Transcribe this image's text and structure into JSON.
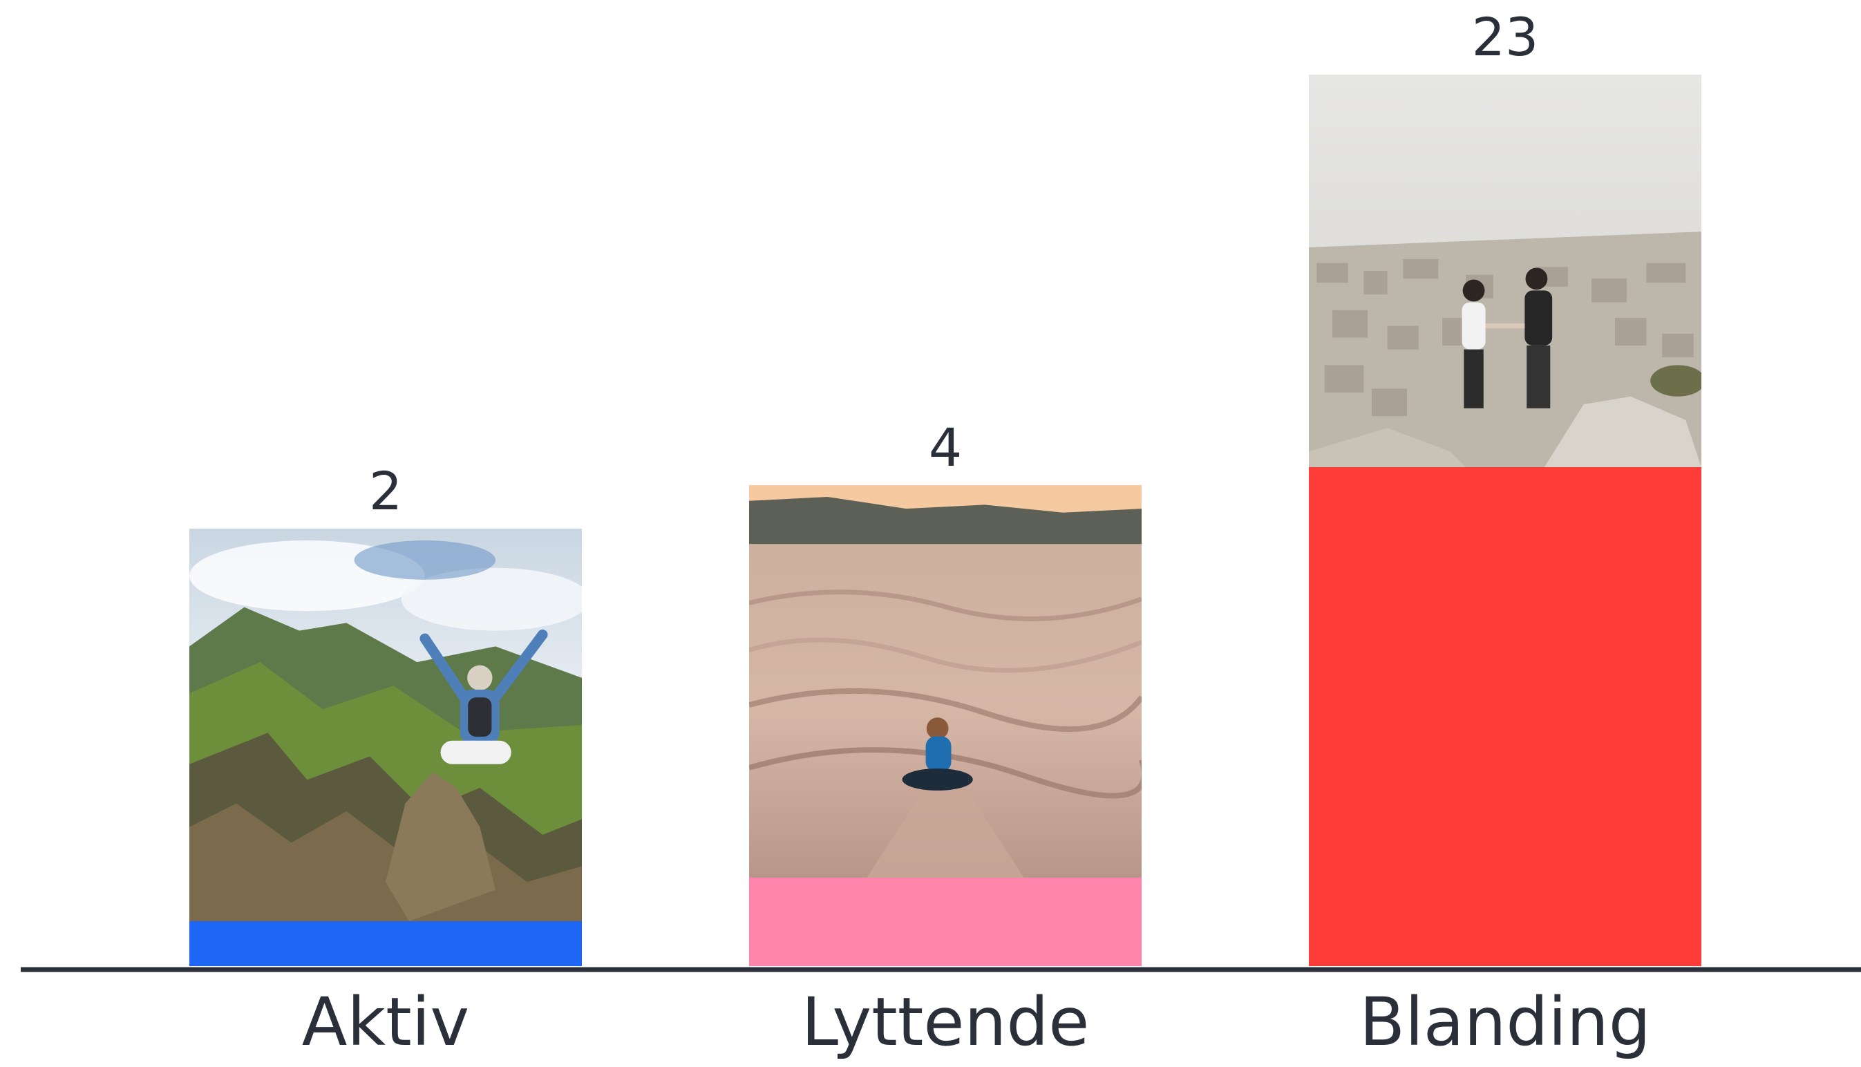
{
  "chart_data": {
    "type": "bar",
    "categories": [
      "Aktiv",
      "Lyttende",
      "Blanding"
    ],
    "values": [
      2,
      4,
      23
    ],
    "data_labels": [
      "2",
      "4",
      "23"
    ],
    "bar_colors": [
      "#1e66f5",
      "#ff85ad",
      "#ff3d38"
    ],
    "bar_images": [
      "mountain-summit-hiker-photo",
      "desert-dunes-sitting-person-photo",
      "city-overlook-couple-photo"
    ],
    "axis_color": "#2b2f3a",
    "text_color": "#2b2f3a",
    "legend": "none",
    "grid": false,
    "title": "",
    "xlabel": "",
    "ylabel": ""
  }
}
